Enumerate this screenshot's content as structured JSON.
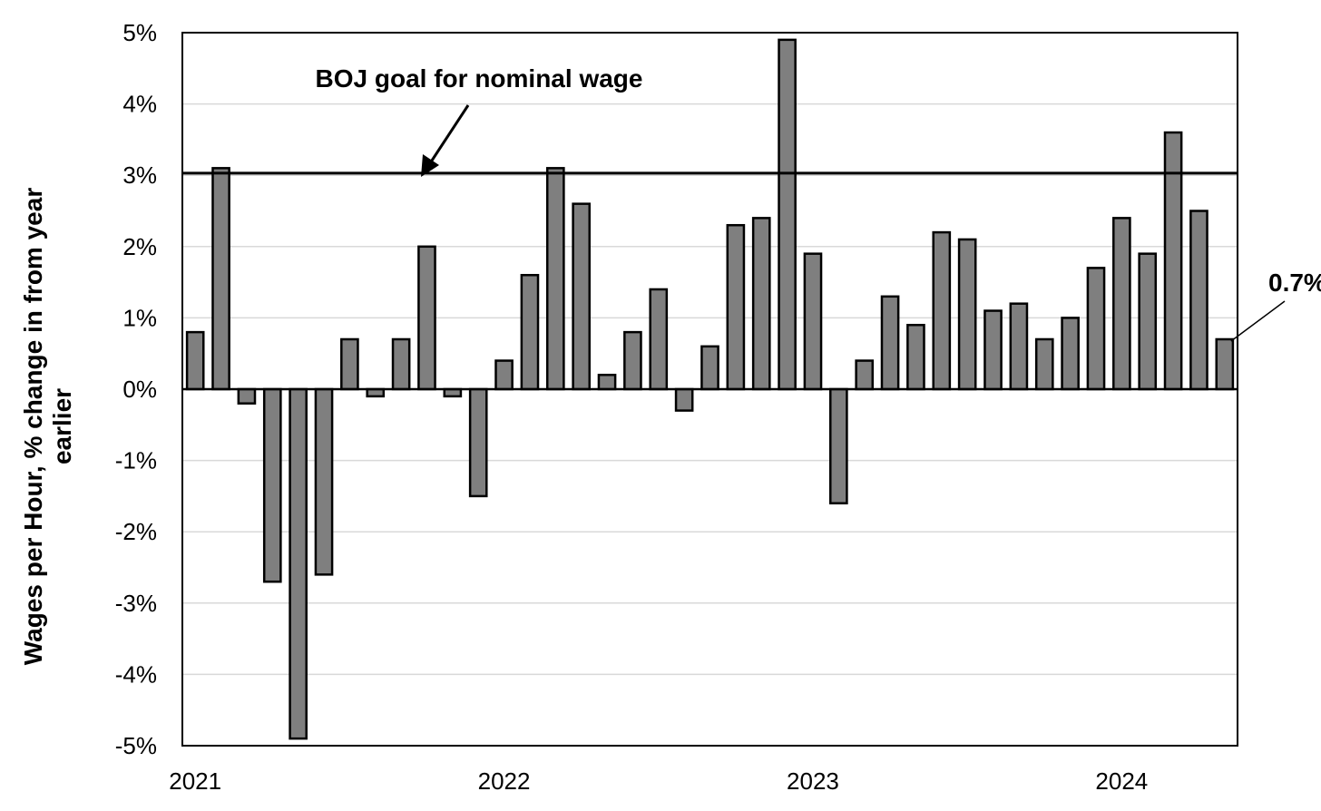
{
  "chart_data": {
    "type": "bar",
    "ylabel_lines": [
      "Wages per Hour, % change in from year",
      "earlier"
    ],
    "ylim": [
      -5,
      5
    ],
    "yticks": [
      5,
      4,
      3,
      2,
      1,
      0,
      -1,
      -2,
      -3,
      -4,
      -5
    ],
    "ytick_labels": [
      "5%",
      "4%",
      "3%",
      "2%",
      "1%",
      "0%",
      "-1%",
      "-2%",
      "-3%",
      "-4%",
      "-5%"
    ],
    "xtick_labels": [
      {
        "label": "2021",
        "index": 0
      },
      {
        "label": "2022",
        "index": 12
      },
      {
        "label": "2023",
        "index": 24
      },
      {
        "label": "2024",
        "index": 36
      }
    ],
    "categories": [
      "Jan 2021",
      "Feb 2021",
      "Mar 2021",
      "Apr 2021",
      "May 2021",
      "Jun 2021",
      "Jul 2021",
      "Aug 2021",
      "Sep 2021",
      "Oct 2021",
      "Nov 2021",
      "Dec 2021",
      "Jan 2022",
      "Feb 2022",
      "Mar 2022",
      "Apr 2022",
      "May 2022",
      "Jun 2022",
      "Jul 2022",
      "Aug 2022",
      "Sep 2022",
      "Oct 2022",
      "Nov 2022",
      "Dec 2022",
      "Jan 2023",
      "Feb 2023",
      "Mar 2023",
      "Apr 2023",
      "May 2023",
      "Jun 2023",
      "Jul 2023",
      "Aug 2023",
      "Sep 2023",
      "Oct 2023",
      "Nov 2023",
      "Dec 2023",
      "Jan 2024",
      "Feb 2024",
      "Mar 2024",
      "Apr 2024",
      "May 2024"
    ],
    "values": [
      0.8,
      3.1,
      -0.2,
      -2.7,
      -4.9,
      -2.6,
      0.7,
      -0.1,
      0.7,
      2.0,
      -0.1,
      -1.5,
      0.4,
      1.6,
      3.1,
      2.6,
      0.2,
      0.8,
      1.4,
      -0.3,
      0.6,
      2.3,
      2.4,
      4.9,
      1.9,
      -1.6,
      0.4,
      1.3,
      0.9,
      2.2,
      2.1,
      1.1,
      1.2,
      0.7,
      1.0,
      1.7,
      2.4,
      1.9,
      3.6,
      2.5,
      0.7
    ],
    "reference_line": {
      "value": 3.03,
      "label": "BOJ goal for nominal wage"
    },
    "last_value_label": "0.7%",
    "grid": true,
    "bar_color": "#7f7f7f"
  }
}
